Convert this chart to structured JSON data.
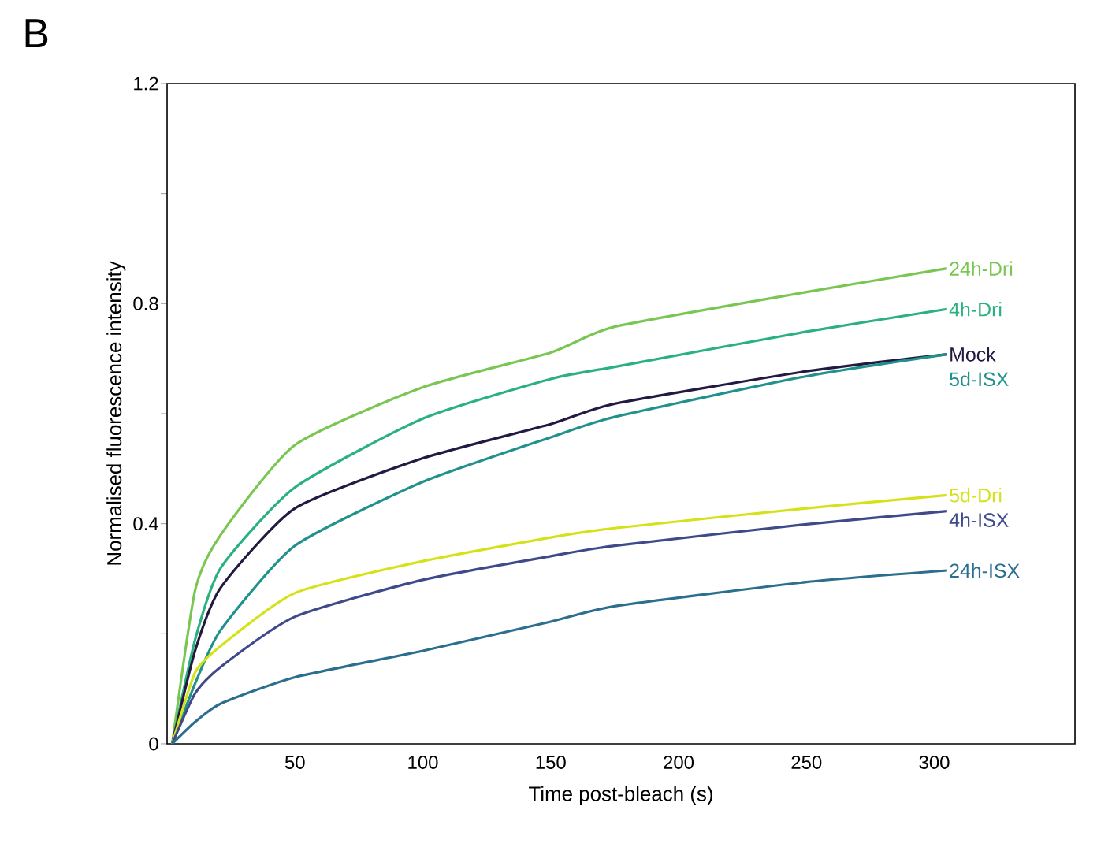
{
  "chart_data": {
    "type": "line",
    "title": "B",
    "xlabel": "Time post-bleach (s)",
    "ylabel": "Normalised fluorescence intensity",
    "xlim": [
      0,
      355
    ],
    "ylim": [
      0,
      1.2
    ],
    "xticks": [
      50,
      100,
      150,
      200,
      250,
      300
    ],
    "yticks": [
      0,
      {
        "value": 0.2,
        "label": null
      },
      0.4,
      {
        "value": 0.6,
        "label": null
      },
      0.8,
      {
        "value": 1.0,
        "label": null
      },
      1.2
    ],
    "x": [
      2,
      11,
      21,
      50,
      100,
      150,
      175,
      250,
      305
    ],
    "series": [
      {
        "name": "24h-Dri",
        "color": "#7ac653",
        "values": [
          0,
          0.28,
          0.38,
          0.543,
          0.648,
          0.711,
          0.758,
          0.821,
          0.864
        ]
      },
      {
        "name": "4h-Dri",
        "color": "#2bb07f",
        "values": [
          0,
          0.19,
          0.32,
          0.466,
          0.591,
          0.663,
          0.685,
          0.749,
          0.79
        ]
      },
      {
        "name": "Mock",
        "color": "#231942",
        "values": [
          0,
          0.17,
          0.284,
          0.428,
          0.519,
          0.581,
          0.618,
          0.677,
          0.708
        ]
      },
      {
        "name": "5d-ISX",
        "color": "#21918c",
        "values": [
          0,
          0.11,
          0.207,
          0.36,
          0.476,
          0.557,
          0.594,
          0.668,
          0.708
        ]
      },
      {
        "name": "5d-Dri",
        "color": "#d5e21a",
        "values": [
          0,
          0.13,
          0.178,
          0.274,
          0.332,
          0.375,
          0.392,
          0.428,
          0.452
        ]
      },
      {
        "name": "4h-ISX",
        "color": "#3f4a8a",
        "values": [
          0,
          0.092,
          0.14,
          0.231,
          0.298,
          0.341,
          0.36,
          0.399,
          0.423
        ]
      },
      {
        "name": "24h-ISX",
        "color": "#2c6e8e",
        "values": [
          0,
          0.04,
          0.073,
          0.121,
          0.169,
          0.222,
          0.25,
          0.294,
          0.315
        ]
      }
    ]
  }
}
